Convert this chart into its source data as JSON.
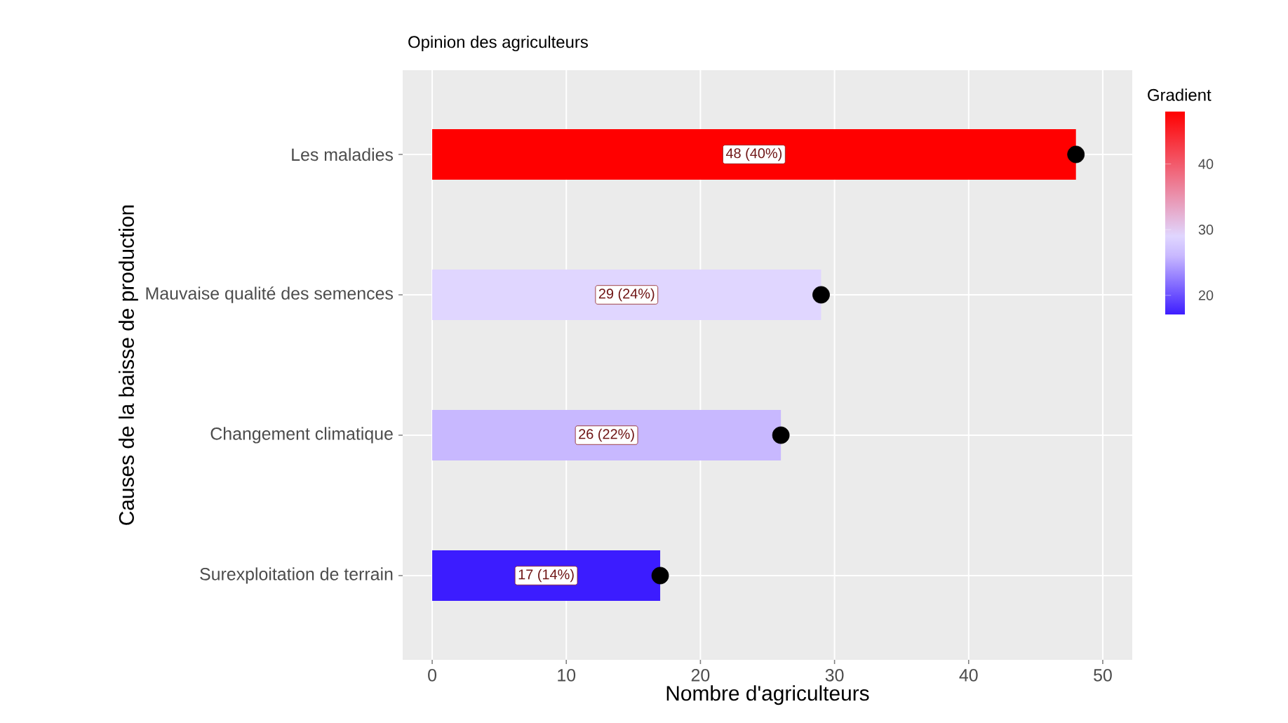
{
  "chart_data": {
    "type": "bar",
    "orientation": "horizontal",
    "title": "Opinion des agriculteurs",
    "xlabel": "Nombre d'agriculteurs",
    "ylabel": "Causes de la baisse de production",
    "clabel": "Gradient",
    "categories": [
      "Les maladies",
      "Mauvaise qualité des semences",
      "Changement climatique",
      "Surexploitation de terrain"
    ],
    "series": [
      {
        "colors": [
          "#ff0000",
          "#e0d6ff",
          "#c8b8ff",
          "#3c1cff"
        ],
        "values": [
          48,
          29,
          26,
          17
        ],
        "value_labels": [
          "48 (40%)",
          "29 (24%)",
          "26 (22%)",
          "17 (14%)"
        ]
      },
      {
        "type": "scatter",
        "color": "#000000",
        "marker": "circle",
        "values": [
          48,
          29,
          26,
          17
        ]
      }
    ],
    "xlim": [
      -2.2,
      52.2
    ],
    "xticks": [
      0,
      10,
      20,
      30,
      40,
      50
    ],
    "grid": true,
    "clim": [
      17,
      48
    ],
    "cticks": [
      20,
      30,
      40
    ]
  }
}
